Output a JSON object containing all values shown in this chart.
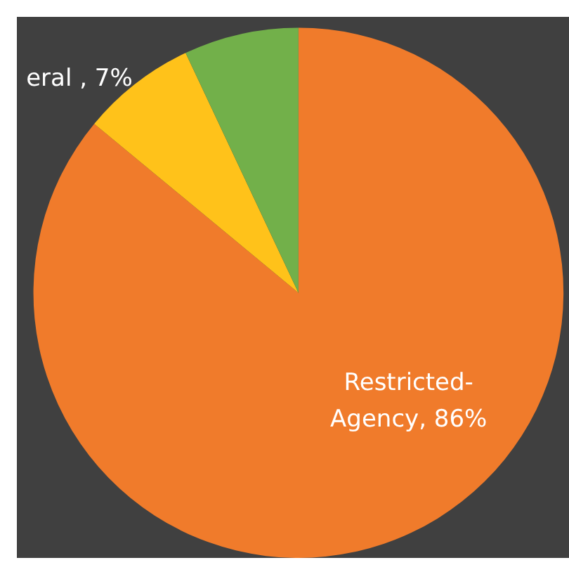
{
  "chart_data": {
    "type": "pie",
    "categories": [
      "Restricted-Agency",
      "eral ",
      null
    ],
    "values": [
      86,
      7,
      7
    ],
    "colors": [
      "#f07b2b",
      "#ffc21a",
      "#72b04a"
    ],
    "value_labels": [
      "86%",
      "7%",
      null
    ],
    "legend": false
  }
}
